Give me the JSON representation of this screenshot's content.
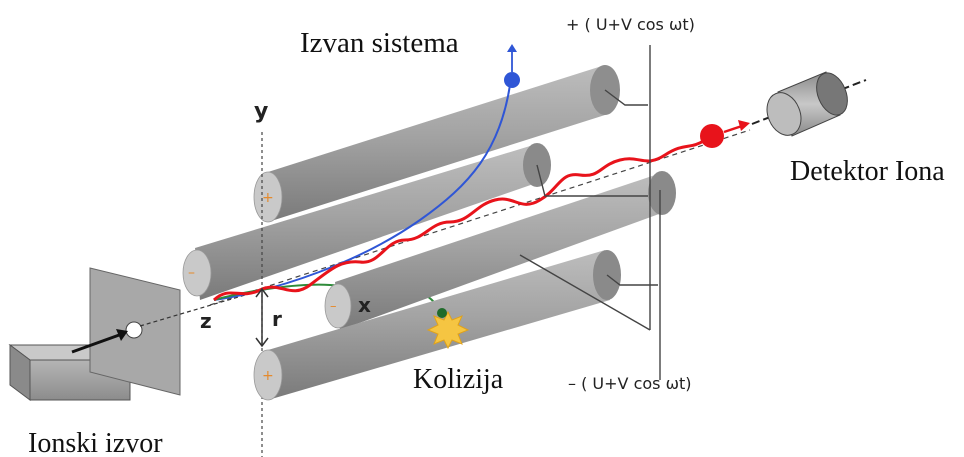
{
  "labels": {
    "outside_system": "Izvan sistema",
    "voltage_plus": "+ ( U+V cos ωt)",
    "voltage_minus": "– ( U+V cos ωt)",
    "detector": "Detektor Iona",
    "collision": "Kolizija",
    "ion_source": "Ionski izvor",
    "axis_y": "y",
    "axis_z": "z",
    "axis_x": "x",
    "axis_r": "r"
  },
  "colors": {
    "rod": "#9a9a9a",
    "rod_light": "#c4c4c4",
    "rod_dark": "#6e6e6e",
    "resonant_ion_path": "#e8131b",
    "escaping_ion_path": "#2f56d6",
    "colliding_ion_path": "#2e8b3a",
    "rod_end_marker": "#e58a2c"
  },
  "icons": {
    "ion_source": "ion-source-block-icon",
    "aperture": "aperture-plate-icon",
    "detector": "detector-cylinder-icon",
    "collision": "collision-burst-icon"
  }
}
